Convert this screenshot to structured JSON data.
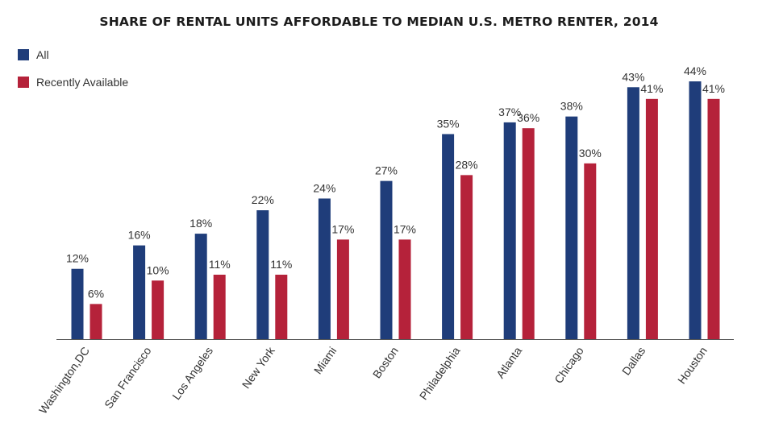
{
  "chart_data": {
    "type": "bar",
    "title": "SHARE OF RENTAL UNITS AFFORDABLE TO MEDIAN U.S. METRO RENTER, 2014",
    "xlabel": "",
    "ylabel": "",
    "ylim": [
      0,
      44
    ],
    "grid": false,
    "legend_position": "top-left",
    "categories": [
      "Washington,DC",
      "San Francisco",
      "Los Angeles",
      "New York",
      "Miami",
      "Boston",
      "Philadelphia",
      "Atlanta",
      "Chicago",
      "Dallas",
      "Houston"
    ],
    "series": [
      {
        "name": "All",
        "color": "#1f3d7a",
        "values": [
          12,
          16,
          18,
          22,
          24,
          27,
          35,
          37,
          38,
          43,
          44
        ],
        "labels": [
          "12%",
          "16%",
          "18%",
          "22%",
          "24%",
          "27%",
          "35%",
          "37%",
          "38%",
          "43%",
          "44%"
        ]
      },
      {
        "name": "Recently Available",
        "color": "#b5223a",
        "values": [
          6,
          10,
          11,
          11,
          17,
          17,
          28,
          36,
          30,
          41,
          41
        ],
        "labels": [
          "6%",
          "10%",
          "11%",
          "11%",
          "17%",
          "17%",
          "28%",
          "36%",
          "30%",
          "41%",
          "41%"
        ]
      }
    ]
  }
}
